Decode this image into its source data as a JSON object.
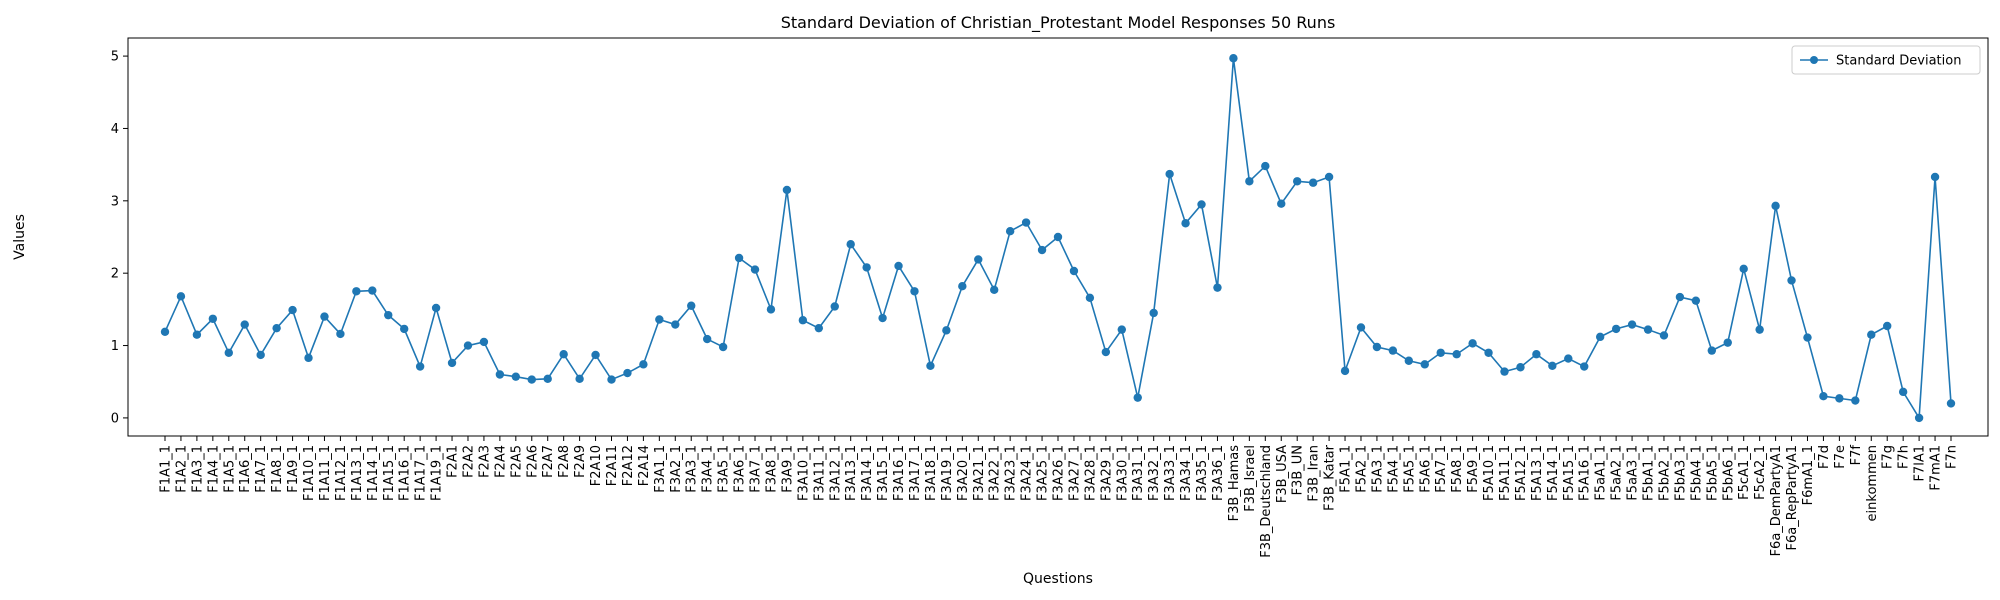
{
  "chart_data": {
    "type": "line",
    "title": "Standard Deviation of Christian_Protestant Model Responses 50 Runs",
    "xlabel": "Questions",
    "ylabel": "Values",
    "ylim": [
      -0.25,
      5.25
    ],
    "yticks": [
      0,
      1,
      2,
      3,
      4,
      5
    ],
    "grid": false,
    "legend_position": "top-right",
    "categories": [
      "F1A1_1",
      "F1A2_1",
      "F1A3_1",
      "F1A4_1",
      "F1A5_1",
      "F1A6_1",
      "F1A7_1",
      "F1A8_1",
      "F1A9_1",
      "F1A10_1",
      "F1A11_1",
      "F1A12_1",
      "F1A13_1",
      "F1A14_1",
      "F1A15_1",
      "F1A16_1",
      "F1A17_1",
      "F1A19_1",
      "F2A1",
      "F2A2",
      "F2A3",
      "F2A4",
      "F2A5",
      "F2A6",
      "F2A7",
      "F2A8",
      "F2A9",
      "F2A10",
      "F2A11",
      "F2A12",
      "F2A14",
      "F3A1_1",
      "F3A2_1",
      "F3A3_1",
      "F3A4_1",
      "F3A5_1",
      "F3A6_1",
      "F3A7_1",
      "F3A8_1",
      "F3A9_1",
      "F3A10_1",
      "F3A11_1",
      "F3A12_1",
      "F3A13_1",
      "F3A14_1",
      "F3A15_1",
      "F3A16_1",
      "F3A17_1",
      "F3A18_1",
      "F3A19_1",
      "F3A20_1",
      "F3A21_1",
      "F3A22_1",
      "F3A23_1",
      "F3A24_1",
      "F3A25_1",
      "F3A26_1",
      "F3A27_1",
      "F3A28_1",
      "F3A29_1",
      "F3A30_1",
      "F3A31_1",
      "F3A32_1",
      "F3A33_1",
      "F3A34_1",
      "F3A35_1",
      "F3A36_1",
      "F3B_Hamas",
      "F3B_Israel",
      "F3B_Deutschland",
      "F3B_USA",
      "F3B_UN",
      "F3B_Iran",
      "F3B_Katar",
      "F5A1_1",
      "F5A2_1",
      "F5A3_1",
      "F5A4_1",
      "F5A5_1",
      "F5A6_1",
      "F5A7_1",
      "F5A8_1",
      "F5A9_1",
      "F5A10_1",
      "F5A11_1",
      "F5A12_1",
      "F5A13_1",
      "F5A14_1",
      "F5A15_1",
      "F5A16_1",
      "F5aA1_1",
      "F5aA2_1",
      "F5aA3_1",
      "F5bA1_1",
      "F5bA2_1",
      "F5bA3_1",
      "F5bA4_1",
      "F5bA5_1",
      "F5bA6_1",
      "F5cA1_1",
      "F5cA2_1",
      "F6a_DemPartyA1",
      "F6a_RepPartyA1",
      "F6mA1_1",
      "F7d",
      "F7e",
      "F7f",
      "einkommen",
      "F7g",
      "F7h",
      "F7lA1",
      "F7mA1",
      "F7n"
    ],
    "series": [
      {
        "name": "Standard Deviation",
        "color": "#1f77b4",
        "marker": "circle",
        "values": [
          1.19,
          1.68,
          1.15,
          1.37,
          0.9,
          1.29,
          0.87,
          1.24,
          1.49,
          0.83,
          1.4,
          1.16,
          1.75,
          1.76,
          1.42,
          1.23,
          0.71,
          1.52,
          0.76,
          1.0,
          1.05,
          0.6,
          0.57,
          0.53,
          0.54,
          0.88,
          0.54,
          0.87,
          0.53,
          0.62,
          0.74,
          1.36,
          1.29,
          1.55,
          1.09,
          0.98,
          2.21,
          2.05,
          1.5,
          3.15,
          1.35,
          1.24,
          1.54,
          2.4,
          2.08,
          1.38,
          2.1,
          1.75,
          0.72,
          1.21,
          1.82,
          2.19,
          1.77,
          2.58,
          2.7,
          2.32,
          2.5,
          2.03,
          1.66,
          0.91,
          1.22,
          0.28,
          1.45,
          3.37,
          2.69,
          2.95,
          1.8,
          4.97,
          3.27,
          3.48,
          2.96,
          3.27,
          3.25,
          3.33,
          0.65,
          1.25,
          0.98,
          0.93,
          0.79,
          0.74,
          0.9,
          0.88,
          1.03,
          0.9,
          0.64,
          0.7,
          0.88,
          0.72,
          0.82,
          0.71,
          1.12,
          1.23,
          1.29,
          1.22,
          1.14,
          1.67,
          1.62,
          0.93,
          1.04,
          2.06,
          1.22,
          2.93,
          1.9,
          1.11,
          0.3,
          0.27,
          0.24,
          1.15,
          1.27,
          0.36,
          0.0,
          3.33,
          0.2
        ]
      }
    ]
  }
}
